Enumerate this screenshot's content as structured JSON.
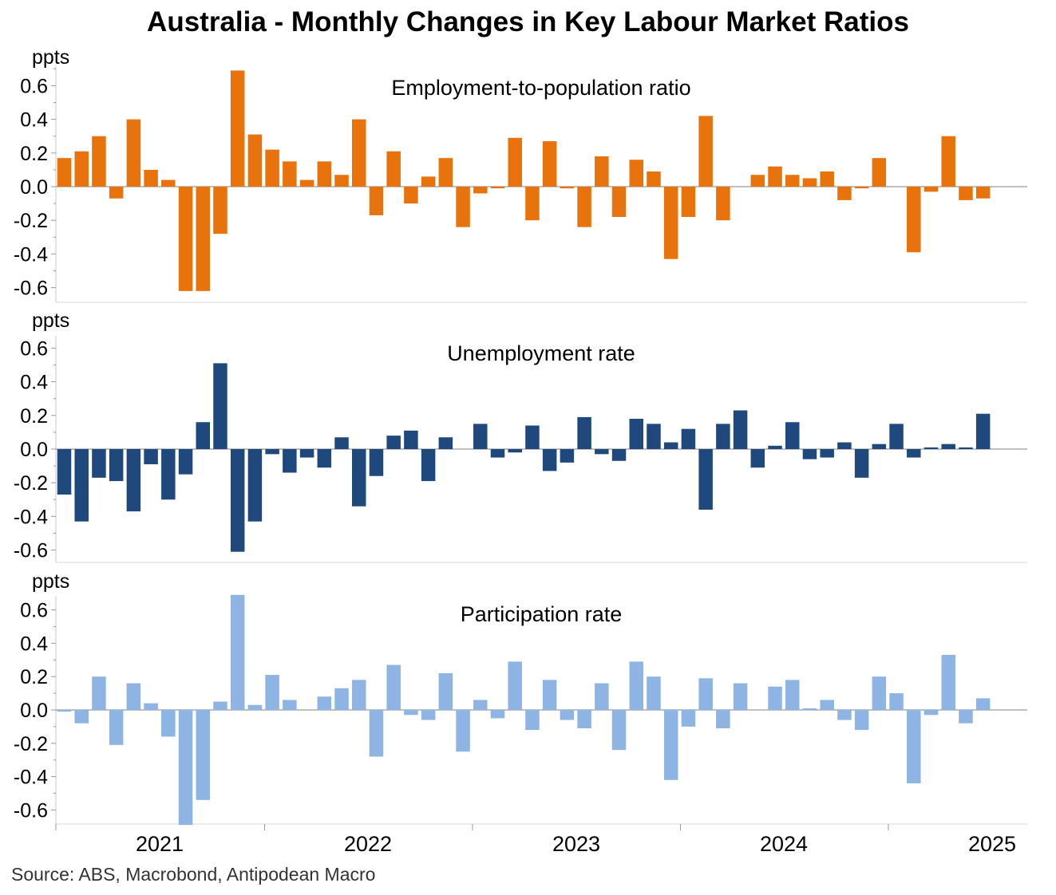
{
  "title": "Australia - Monthly Changes in Key Labour Market Ratios",
  "source": "Source: ABS, Macrobond, Antipodean Macro",
  "chart_data": [
    {
      "type": "bar",
      "title": "Employment-to-population ratio",
      "ylabel": "ppts",
      "ylim": [
        -0.7,
        0.7
      ],
      "yticks": [
        "0.6",
        "0.4",
        "0.2",
        "0.0",
        "-0.2",
        "-0.4",
        "-0.6"
      ],
      "xticks": [
        "2021",
        "2022",
        "2023",
        "2024",
        "2025"
      ],
      "color": "#E8720C",
      "series": [
        {
          "values": [
            0.17,
            0.21,
            0.3,
            -0.07,
            0.4,
            0.1,
            0.04,
            -0.62,
            -0.62,
            -0.28,
            0.69,
            0.31,
            0.22,
            0.15,
            0.04,
            0.15,
            0.07,
            0.4,
            -0.17,
            0.21,
            -0.1,
            0.06,
            0.17,
            -0.24,
            -0.04,
            -0.01,
            0.29,
            -0.2,
            0.27,
            -0.01,
            -0.24,
            0.18,
            -0.18,
            0.16,
            0.09,
            -0.43,
            -0.18,
            0.42,
            -0.2,
            0.0,
            0.07,
            0.12,
            0.07,
            0.05,
            0.09,
            -0.08,
            -0.01,
            0.17,
            0.0,
            -0.39,
            -0.03,
            0.3,
            -0.08,
            -0.07
          ]
        }
      ]
    },
    {
      "type": "bar",
      "title": "Unemployment rate",
      "ylabel": "ppts",
      "ylim": [
        -0.7,
        0.7
      ],
      "yticks": [
        "0.6",
        "0.4",
        "0.2",
        "0.0",
        "-0.2",
        "-0.4",
        "-0.6"
      ],
      "xticks": [
        "2021",
        "2022",
        "2023",
        "2024",
        "2025"
      ],
      "color": "#1F497D",
      "series": [
        {
          "values": [
            -0.27,
            -0.43,
            -0.17,
            -0.19,
            -0.37,
            -0.09,
            -0.3,
            -0.15,
            0.16,
            0.51,
            -0.61,
            -0.43,
            -0.03,
            -0.14,
            -0.05,
            -0.11,
            0.07,
            -0.34,
            -0.16,
            0.08,
            0.11,
            -0.19,
            0.07,
            0.0,
            0.15,
            -0.05,
            -0.02,
            0.14,
            -0.13,
            -0.08,
            0.19,
            -0.03,
            -0.07,
            0.18,
            0.15,
            0.04,
            0.12,
            -0.36,
            0.15,
            0.23,
            -0.11,
            0.02,
            0.16,
            -0.06,
            -0.05,
            0.04,
            -0.17,
            0.03,
            0.15,
            -0.05,
            0.01,
            0.03,
            0.01,
            0.21
          ]
        }
      ]
    },
    {
      "type": "bar",
      "title": "Participation rate",
      "ylabel": "ppts",
      "ylim": [
        -0.7,
        0.7
      ],
      "yticks": [
        "0.6",
        "0.4",
        "0.2",
        "0.0",
        "-0.2",
        "-0.4",
        "-0.6"
      ],
      "xticks": [
        "2021",
        "2022",
        "2023",
        "2024",
        "2025"
      ],
      "color": "#8DB4E2",
      "series": [
        {
          "values": [
            -0.01,
            -0.08,
            0.2,
            -0.21,
            0.16,
            0.04,
            -0.16,
            -0.69,
            -0.54,
            0.05,
            0.69,
            0.03,
            0.21,
            0.06,
            0.0,
            0.08,
            0.13,
            0.18,
            -0.28,
            0.27,
            -0.03,
            -0.06,
            0.22,
            -0.25,
            0.06,
            -0.05,
            0.29,
            -0.12,
            0.18,
            -0.06,
            -0.11,
            0.16,
            -0.24,
            0.29,
            0.2,
            -0.42,
            -0.1,
            0.19,
            -0.11,
            0.16,
            0.0,
            0.14,
            0.18,
            0.01,
            0.06,
            -0.06,
            -0.12,
            0.2,
            0.1,
            -0.44,
            -0.03,
            0.33,
            -0.08,
            0.07
          ]
        }
      ]
    }
  ]
}
